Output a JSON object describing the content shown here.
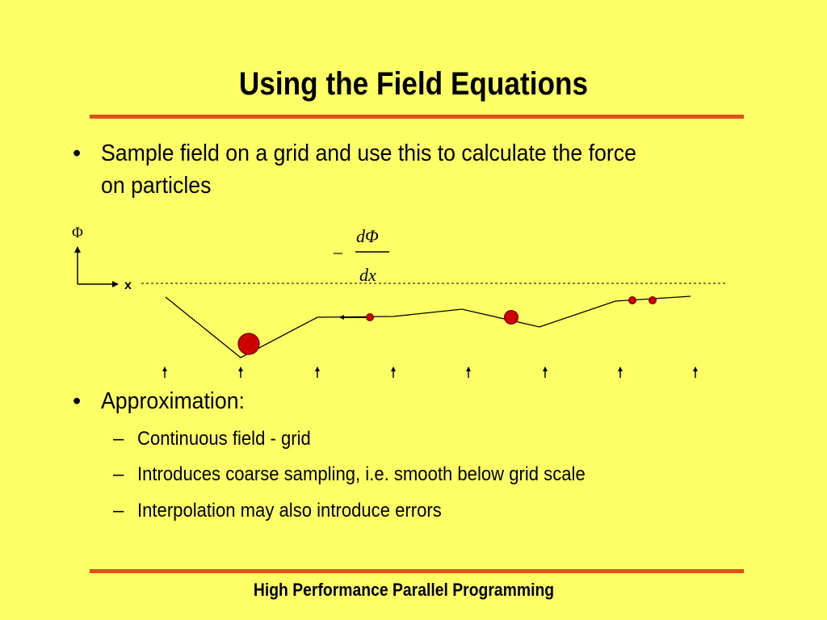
{
  "slide": {
    "title": "Using the Field Equations",
    "bullets": [
      {
        "line1": "Sample field on a grid and use this to calculate the force",
        "line2": "on particles"
      },
      {
        "line1": "Approximation:"
      }
    ],
    "bullet_char": "•",
    "sub_dash": "–",
    "sub_bullets": [
      "Continuous field  - grid",
      "Introduces coarse sampling, i.e. smooth below grid scale",
      "Interpolation may also introduce errors"
    ],
    "footer": "High Performance Parallel Programming"
  },
  "diagram": {
    "y_axis_label": "Φ",
    "x_axis_label": "x",
    "formula": {
      "minus": "–",
      "numerator": "dΦ",
      "denominator": "dx"
    },
    "colors": {
      "particle_fill": "#CC0000",
      "particle_stroke": "#660000",
      "line": "#000000",
      "accent_rule": "#E0501A",
      "background": "#FFFF66"
    }
  }
}
